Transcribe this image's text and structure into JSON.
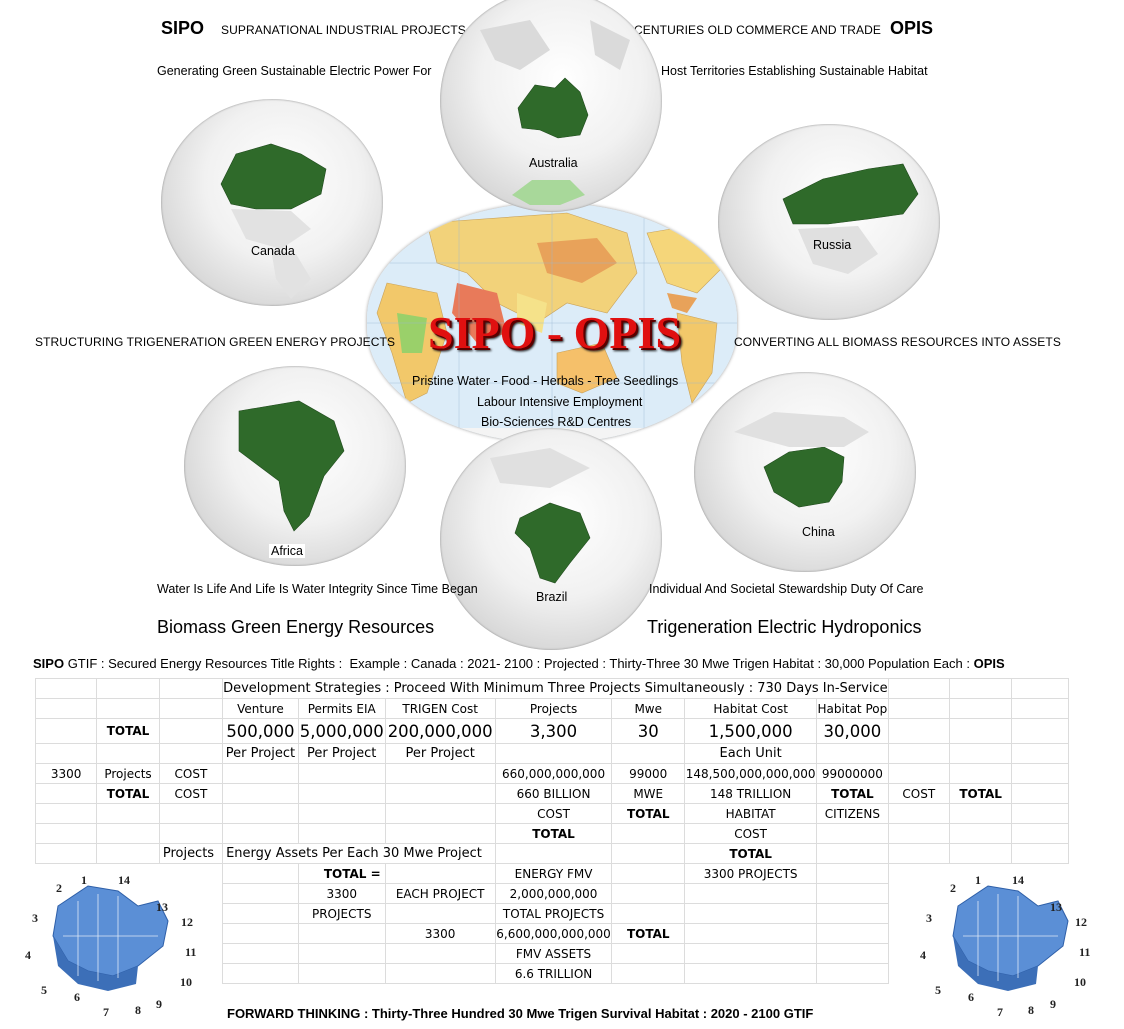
{
  "header": {
    "left_brand": "SIPO",
    "left_tagline": "SUPRANATIONAL INDUSTRIAL PROJECTS",
    "right_tagline": "CENTURIES OLD COMMERCE AND  TRADE",
    "right_brand": "OPIS",
    "left_sub": "Generating Green Sustainable Electric Power For",
    "right_sub": "Host Territories Establishing Sustainable Habitat"
  },
  "globes": {
    "australia": "Australia",
    "canada": "Canada",
    "russia": "Russia",
    "africa": "Africa",
    "china": "China",
    "brazil": "Brazil"
  },
  "center": {
    "title": "SIPO - OPIS",
    "line1": "Pristine Water - Food - Herbals - Tree Seedlings",
    "line2": "Labour Intensive Employment",
    "line3": "Bio-Sciences R&D Centres"
  },
  "middle": {
    "left": "STRUCTURING TRIGENERATION GREEN ENERGY PROJECTS",
    "right": "CONVERTING ALL BIOMASS RESOURCES INTO ASSETS"
  },
  "lower": {
    "left": "Water Is Life And Life Is Water Integrity Since Time Began",
    "right": "Individual And Societal Stewardship Duty Of Care",
    "section_left": "Biomass Green Energy Resources",
    "section_right": "Trigeneration Electric Hydroponics"
  },
  "summary_line": {
    "sipo": "SIPO",
    "text": " GTIF : Secured Energy Resources Title Rights :  Example : Canada : 2021- 2100 : Projected : Thirty-Three 30 Mwe Trigen Habitat : 30,000 Population Each : ",
    "opis": "OPIS"
  },
  "table": {
    "strategies": "Development Strategies : Proceed With Minimum Three Projects Simultaneously : 730 Days In-Service",
    "headers": [
      "Venture",
      "Permits EIA",
      "TRIGEN Cost",
      "Projects",
      "Mwe",
      "Habitat Cost",
      "Habitat Pop"
    ],
    "total": "TOTAL",
    "values": [
      "500,000",
      "5,000,000",
      "200,000,000",
      "3,300",
      "30",
      "1,500,000",
      "30,000"
    ],
    "per_project": "Per Project",
    "each_unit": "Each Unit",
    "r5": [
      "3300",
      "Projects",
      "COST",
      "660,000,000,000",
      "99000",
      "148,500,000,000,000",
      "99000000"
    ],
    "r6": [
      "TOTAL",
      "COST",
      "660 BILLION",
      "MWE",
      "148 TRILLION",
      "TOTAL",
      "COST",
      "TOTAL"
    ],
    "r7": [
      "COST",
      "TOTAL",
      "HABITAT",
      "CITIZENS"
    ],
    "r8": [
      "TOTAL",
      "COST"
    ],
    "r9": [
      "Projects",
      "Energy Assets Per Each 30 Mwe Project",
      "TOTAL"
    ],
    "r10": [
      "TOTAL =",
      "ENERGY FMV",
      "3300 PROJECTS"
    ],
    "r11": [
      "3300",
      "EACH PROJECT",
      "2,000,000,000"
    ],
    "r12": [
      "PROJECTS",
      "TOTAL PROJECTS"
    ],
    "r13": [
      "3300",
      "6,600,000,000,000",
      "TOTAL"
    ],
    "r14": [
      "FMV ASSETS"
    ],
    "r15": [
      "6.6 TRILLION"
    ],
    "footer": "FORWARD THINKING : Thirty-Three Hundred 30 Mwe Trigen Survival Habitat : 2020 - 2100 GTIF"
  },
  "canada_map_numbers": [
    "1",
    "2",
    "3",
    "4",
    "5",
    "6",
    "7",
    "8",
    "9",
    "10",
    "11",
    "12",
    "13",
    "14"
  ],
  "colors": {
    "land_green": "#2f6a2a",
    "title_red": "#e01010",
    "map_blue": "#5b8fd6",
    "grid": "#dcdcdc"
  }
}
